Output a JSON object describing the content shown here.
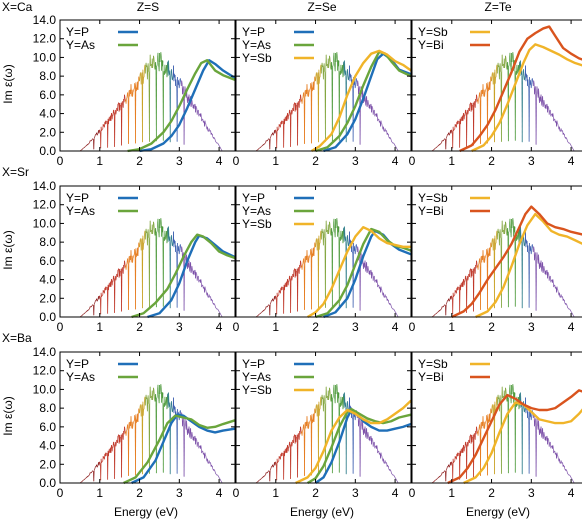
{
  "col_headers": [
    "Z=S",
    "Z=Se",
    "Z=Te"
  ],
  "row_headers": [
    "X=Ca",
    "X=Sr",
    "X=Ba"
  ],
  "ylabel": "Im ε(ω)",
  "xlabel": "Energy (eV)",
  "colors": {
    "P": "#1f6fb8",
    "As": "#6aa53c",
    "Sb": "#f0b429",
    "Bi": "#d9541e",
    "spectrum": "solar"
  },
  "chart_data": {
    "type": "line",
    "xlim": [
      0,
      4.4
    ],
    "ylim": [
      0,
      14
    ],
    "xticks": [
      "0",
      "1",
      "2",
      "3",
      "4"
    ],
    "yticks": [
      "0.0",
      "2.0",
      "4.0",
      "6.0",
      "8.0",
      "10.0",
      "12.0",
      "14.0"
    ],
    "x_tick_values": [
      0,
      1,
      2,
      3,
      4
    ],
    "y_tick_values": [
      0,
      2,
      4,
      6,
      8,
      10,
      12,
      14
    ],
    "grid": false,
    "background": "solar spectrum overlay (scaled)",
    "panels": [
      {
        "row": 0,
        "col": 0,
        "series": [
          {
            "name": "Y=P",
            "color": "#1f6fb8",
            "x": [
              2.0,
              2.3,
              2.6,
              2.8,
              3.0,
              3.2,
              3.4,
              3.6,
              3.75,
              3.9,
              4.1,
              4.4
            ],
            "y": [
              0,
              0.2,
              0.8,
              1.6,
              2.8,
              4.6,
              6.6,
              8.6,
              9.7,
              9.3,
              8.6,
              7.8
            ]
          },
          {
            "name": "Y=As",
            "color": "#6aa53c",
            "x": [
              1.7,
              2.0,
              2.3,
              2.6,
              2.8,
              3.0,
              3.2,
              3.4,
              3.55,
              3.7,
              3.9,
              4.1,
              4.4
            ],
            "y": [
              0,
              0.2,
              0.8,
              2.0,
              3.2,
              4.8,
              6.6,
              8.3,
              9.4,
              9.7,
              8.6,
              8.1,
              7.6
            ]
          }
        ]
      },
      {
        "row": 0,
        "col": 1,
        "series": [
          {
            "name": "Y=P",
            "color": "#1f6fb8",
            "x": [
              2.2,
              2.5,
              2.8,
              3.0,
              3.2,
              3.4,
              3.55,
              3.7,
              3.9,
              4.1,
              4.4
            ],
            "y": [
              0,
              0.4,
              1.8,
              3.4,
              5.6,
              8.0,
              9.8,
              10.4,
              9.8,
              8.7,
              8.2
            ]
          },
          {
            "name": "Y=As",
            "color": "#6aa53c",
            "x": [
              2.0,
              2.3,
              2.6,
              2.8,
              3.0,
              3.2,
              3.4,
              3.6,
              3.75,
              3.9,
              4.1,
              4.4
            ],
            "y": [
              0,
              0.4,
              1.6,
              3.0,
              4.8,
              7.0,
              9.0,
              10.6,
              10.4,
              9.6,
              8.6,
              8.0
            ]
          },
          {
            "name": "Y=Sb",
            "color": "#f0b429",
            "x": [
              1.9,
              2.1,
              2.4,
              2.6,
              2.8,
              3.0,
              3.2,
              3.4,
              3.6,
              3.8,
              4.0,
              4.2,
              4.4
            ],
            "y": [
              0,
              0.5,
              1.8,
              3.6,
              6.0,
              8.0,
              9.4,
              10.4,
              10.7,
              10.3,
              9.6,
              9.2,
              8.6
            ]
          }
        ]
      },
      {
        "row": 0,
        "col": 2,
        "series": [
          {
            "name": "Y=Sb",
            "color": "#f0b429",
            "x": [
              1.5,
              1.8,
              2.0,
              2.2,
              2.4,
              2.6,
              2.8,
              2.95,
              3.1,
              3.3,
              3.5,
              3.7,
              3.9,
              4.1,
              4.4
            ],
            "y": [
              0,
              0.6,
              1.6,
              3.0,
              5.0,
              7.2,
              9.4,
              10.8,
              11.4,
              11.1,
              10.7,
              10.3,
              9.8,
              9.4,
              9.0
            ]
          },
          {
            "name": "Y=Bi",
            "color": "#d9541e",
            "x": [
              1.2,
              1.5,
              1.7,
              1.9,
              2.1,
              2.3,
              2.5,
              2.7,
              2.9,
              3.1,
              3.3,
              3.45,
              3.6,
              3.8,
              4.0,
              4.2,
              4.4
            ],
            "y": [
              0,
              0.6,
              1.6,
              2.8,
              4.4,
              6.4,
              8.4,
              10.6,
              12.0,
              12.6,
              13.1,
              13.3,
              12.3,
              11.0,
              10.4,
              9.9,
              9.6
            ]
          }
        ]
      },
      {
        "row": 1,
        "col": 0,
        "series": [
          {
            "name": "Y=P",
            "color": "#1f6fb8",
            "x": [
              2.2,
              2.5,
              2.8,
              3.0,
              3.2,
              3.4,
              3.5,
              3.7,
              3.9,
              4.1,
              4.4
            ],
            "y": [
              0,
              0.4,
              1.8,
              3.6,
              6.0,
              8.0,
              8.7,
              8.4,
              7.7,
              7.0,
              6.4
            ]
          },
          {
            "name": "Y=As",
            "color": "#6aa53c",
            "x": [
              1.8,
              2.1,
              2.4,
              2.7,
              2.9,
              3.1,
              3.3,
              3.45,
              3.6,
              3.8,
              4.0,
              4.2,
              4.4
            ],
            "y": [
              0,
              0.4,
              1.5,
              3.0,
              4.6,
              6.4,
              8.0,
              8.8,
              8.6,
              7.9,
              7.0,
              6.6,
              6.3
            ]
          }
        ]
      },
      {
        "row": 1,
        "col": 1,
        "series": [
          {
            "name": "Y=P",
            "color": "#1f6fb8",
            "x": [
              2.2,
              2.5,
              2.8,
              3.0,
              3.2,
              3.4,
              3.5,
              3.7,
              3.9,
              4.1,
              4.4
            ],
            "y": [
              0,
              0.5,
              2.0,
              4.0,
              6.5,
              8.6,
              9.2,
              8.8,
              7.8,
              7.2,
              6.7
            ]
          },
          {
            "name": "Y=As",
            "color": "#6aa53c",
            "x": [
              2.0,
              2.3,
              2.6,
              2.8,
              3.0,
              3.2,
              3.4,
              3.6,
              3.8,
              4.0,
              4.2,
              4.4
            ],
            "y": [
              0,
              0.4,
              1.8,
              3.4,
              5.6,
              7.8,
              9.4,
              9.1,
              8.2,
              7.6,
              7.4,
              7.1
            ]
          },
          {
            "name": "Y=Sb",
            "color": "#f0b429",
            "x": [
              1.8,
              2.0,
              2.2,
              2.4,
              2.6,
              2.8,
              3.0,
              3.2,
              3.4,
              3.6,
              3.8,
              4.0,
              4.2,
              4.4
            ],
            "y": [
              0,
              0.5,
              1.4,
              3.0,
              5.0,
              7.0,
              8.6,
              9.6,
              9.2,
              8.4,
              7.9,
              7.7,
              7.5,
              7.5
            ]
          }
        ]
      },
      {
        "row": 1,
        "col": 2,
        "series": [
          {
            "name": "Y=Sb",
            "color": "#f0b429",
            "x": [
              1.6,
              1.9,
              2.1,
              2.3,
              2.5,
              2.7,
              2.9,
              3.1,
              3.3,
              3.5,
              3.7,
              3.9,
              4.1,
              4.4
            ],
            "y": [
              0,
              0.6,
              1.6,
              3.2,
              5.4,
              7.8,
              9.8,
              11.0,
              10.2,
              9.2,
              8.8,
              8.6,
              8.2,
              7.6
            ]
          },
          {
            "name": "Y=Bi",
            "color": "#d9541e",
            "x": [
              1.0,
              1.3,
              1.5,
              1.7,
              1.9,
              2.1,
              2.3,
              2.5,
              2.7,
              2.85,
              3.0,
              3.2,
              3.4,
              3.6,
              3.8,
              4.0,
              4.2,
              4.4
            ],
            "y": [
              0,
              0.6,
              1.4,
              2.6,
              4.0,
              5.2,
              6.4,
              7.8,
              9.6,
              11.0,
              11.8,
              11.0,
              10.0,
              9.6,
              9.4,
              9.1,
              8.9,
              8.7
            ]
          }
        ]
      },
      {
        "row": 2,
        "col": 0,
        "series": [
          {
            "name": "Y=P",
            "color": "#1f6fb8",
            "x": [
              1.8,
              2.1,
              2.4,
              2.6,
              2.8,
              2.95,
              3.1,
              3.3,
              3.5,
              3.7,
              3.9,
              4.1,
              4.4
            ],
            "y": [
              0,
              0.6,
              2.4,
              4.4,
              6.4,
              7.3,
              7.2,
              6.6,
              6.0,
              5.6,
              5.4,
              5.6,
              5.8
            ]
          },
          {
            "name": "Y=As",
            "color": "#6aa53c",
            "x": [
              1.6,
              1.9,
              2.2,
              2.5,
              2.7,
              2.9,
              3.1,
              3.3,
              3.5,
              3.7,
              3.9,
              4.1,
              4.4
            ],
            "y": [
              0,
              0.6,
              2.2,
              4.6,
              6.4,
              7.2,
              7.0,
              6.8,
              6.2,
              5.9,
              6.0,
              6.3,
              6.7
            ]
          }
        ]
      },
      {
        "row": 2,
        "col": 1,
        "series": [
          {
            "name": "Y=P",
            "color": "#1f6fb8",
            "x": [
              2.0,
              2.2,
              2.4,
              2.6,
              2.8,
              2.9,
              3.0,
              3.2,
              3.4,
              3.6,
              3.8,
              4.0,
              4.2,
              4.4
            ],
            "y": [
              0,
              0.6,
              2.2,
              4.4,
              7.0,
              7.8,
              7.6,
              6.6,
              6.0,
              5.6,
              5.6,
              5.8,
              6.0,
              6.3
            ]
          },
          {
            "name": "Y=As",
            "color": "#6aa53c",
            "x": [
              1.8,
              2.0,
              2.2,
              2.4,
              2.6,
              2.8,
              2.9,
              3.1,
              3.3,
              3.5,
              3.7,
              3.9,
              4.1,
              4.4
            ],
            "y": [
              0,
              0.5,
              1.8,
              3.8,
              6.0,
              7.6,
              7.9,
              7.4,
              6.9,
              6.6,
              6.4,
              6.6,
              7.0,
              7.3
            ]
          },
          {
            "name": "Y=Sb",
            "color": "#f0b429",
            "x": [
              1.5,
              1.8,
              2.0,
              2.2,
              2.4,
              2.6,
              2.8,
              3.0,
              3.2,
              3.4,
              3.6,
              3.8,
              4.0,
              4.2,
              4.4
            ],
            "y": [
              0,
              0.6,
              1.6,
              3.4,
              5.6,
              7.0,
              7.8,
              7.4,
              6.8,
              6.4,
              6.4,
              6.8,
              7.4,
              8.0,
              8.8
            ]
          }
        ]
      },
      {
        "row": 2,
        "col": 2,
        "series": [
          {
            "name": "Y=Sb",
            "color": "#f0b429",
            "x": [
              1.3,
              1.6,
              1.8,
              2.0,
              2.2,
              2.4,
              2.6,
              2.8,
              3.0,
              3.2,
              3.4,
              3.6,
              3.8,
              4.0,
              4.2,
              4.4
            ],
            "y": [
              0,
              0.6,
              1.6,
              3.2,
              5.4,
              7.4,
              8.6,
              8.4,
              7.6,
              6.8,
              6.6,
              6.4,
              6.4,
              6.6,
              7.4,
              8.4
            ]
          },
          {
            "name": "Y=Bi",
            "color": "#d9541e",
            "x": [
              0.9,
              1.2,
              1.4,
              1.6,
              1.8,
              2.0,
              2.2,
              2.4,
              2.6,
              2.8,
              3.0,
              3.2,
              3.4,
              3.6,
              3.8,
              4.0,
              4.2,
              4.4
            ],
            "y": [
              0,
              0.6,
              1.6,
              3.0,
              4.8,
              6.6,
              8.4,
              9.4,
              9.0,
              8.4,
              8.0,
              7.8,
              7.8,
              8.0,
              8.6,
              9.2,
              9.9,
              9.6
            ]
          }
        ]
      }
    ]
  }
}
